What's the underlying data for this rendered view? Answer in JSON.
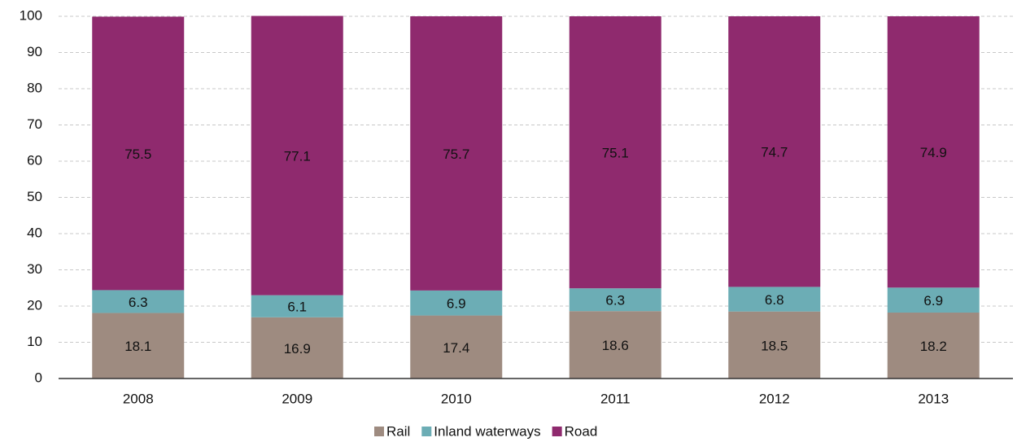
{
  "chart_data": {
    "type": "stacked_bar",
    "categories": [
      "2008",
      "2009",
      "2010",
      "2011",
      "2012",
      "2013"
    ],
    "series": [
      {
        "name": "Rail",
        "color": "#9e8b80",
        "values": [
          18.1,
          16.9,
          17.4,
          18.6,
          18.5,
          18.2
        ]
      },
      {
        "name": "Inland waterways",
        "color": "#6cadb5",
        "values": [
          6.3,
          6.1,
          6.9,
          6.3,
          6.8,
          6.9
        ]
      },
      {
        "name": "Road",
        "color": "#8f2a6e",
        "values": [
          75.5,
          77.1,
          75.7,
          75.1,
          74.7,
          74.9
        ]
      }
    ],
    "ylim": [
      0,
      100
    ],
    "yticks": [
      0,
      10,
      20,
      30,
      40,
      50,
      60,
      70,
      80,
      90,
      100
    ],
    "grid": true,
    "legend": "bottom"
  }
}
